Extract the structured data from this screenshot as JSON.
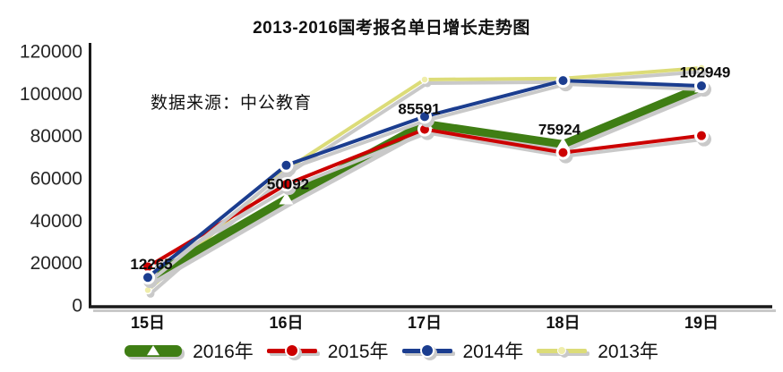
{
  "title": "2013-2016国考报名单日增长走势图",
  "source_note": "数据来源：中公教育",
  "colors": {
    "series_2016": "#3f7e14",
    "series_2015": "#cc0000",
    "series_2014": "#1b3d8f",
    "series_2013": "#dcdc78",
    "marker_2013": "#efedaa",
    "axis": "#1a1a1a",
    "shadow": "#c9c9c9",
    "background": "#ffffff"
  },
  "chart_data": {
    "type": "line",
    "title": "2013-2016国考报名单日增长走势图",
    "annotation": "数据来源：中公教育",
    "categories": [
      "15日",
      "16日",
      "17日",
      "18日",
      "19日"
    ],
    "series": [
      {
        "name": "2016年",
        "color": "#3f7e14",
        "marker": "triangle",
        "marker_color": "#ffffff",
        "line_width": 9,
        "values": [
          12265,
          50092,
          85591,
          75924,
          102949
        ]
      },
      {
        "name": "2015年",
        "color": "#cc0000",
        "marker": "circle",
        "marker_color": "#cc0000",
        "line_width": 4,
        "values": [
          18000,
          57000,
          83000,
          72000,
          80000
        ]
      },
      {
        "name": "2014年",
        "color": "#1b3d8f",
        "marker": "circle",
        "marker_color": "#1b3d8f",
        "line_width": 4,
        "values": [
          13000,
          66000,
          89000,
          106000,
          103500
        ]
      },
      {
        "name": "2013年",
        "color": "#dcdc78",
        "marker": "small-circle",
        "marker_color": "#efedaa",
        "line_width": 4,
        "values": [
          7000,
          64000,
          106500,
          107000,
          112000
        ]
      }
    ],
    "data_labels": {
      "series": "2016年",
      "values": [
        "12265",
        "50092",
        "85591",
        "75924",
        "102949"
      ]
    },
    "xlabel": "",
    "ylabel": "",
    "ylim": [
      0,
      120000
    ],
    "y_ticks": [
      "0",
      "20000",
      "40000",
      "60000",
      "80000",
      "100000",
      "120000"
    ],
    "y_tick_values": [
      0,
      20000,
      40000,
      60000,
      80000,
      100000,
      120000
    ],
    "grid": false,
    "legend_position": "bottom"
  }
}
